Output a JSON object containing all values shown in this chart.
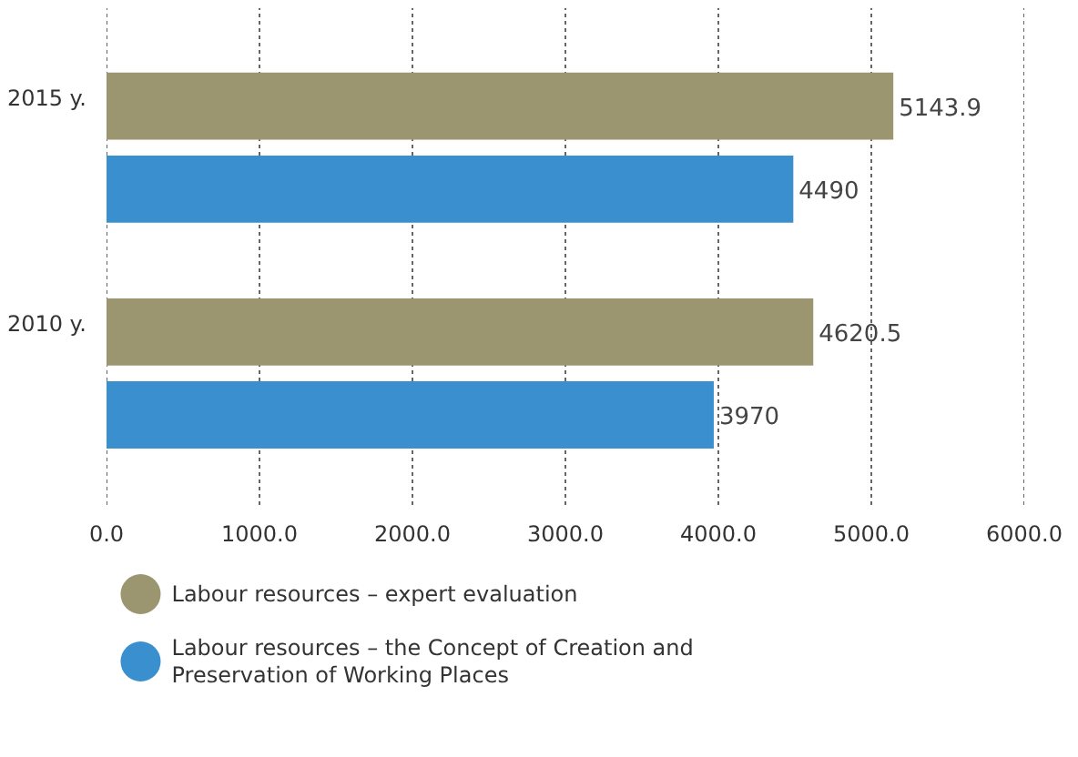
{
  "chart_data": {
    "type": "bar",
    "orientation": "horizontal",
    "categories": [
      "2015 y.",
      "2010 y."
    ],
    "series": [
      {
        "name": "Labour resources – expert evaluation",
        "color": "#9c9670",
        "values": [
          5143.9,
          4620.5
        ]
      },
      {
        "name": "Labour resources – the Concept of Creation and Preservation of Working Places",
        "color": "#3a8fcf",
        "values": [
          4490,
          3970
        ]
      }
    ],
    "xlim": [
      0,
      6000
    ],
    "xticks": [
      {
        "value": 0,
        "label": "0.0"
      },
      {
        "value": 1000,
        "label": "1000.0"
      },
      {
        "value": 2000,
        "label": "2000.0"
      },
      {
        "value": 3000,
        "label": "3000.0"
      },
      {
        "value": 4000,
        "label": "4000.0"
      },
      {
        "value": 5000,
        "label": "5000.0"
      },
      {
        "value": 6000,
        "label": "6000.0"
      }
    ],
    "grid": "x",
    "data_labels": true,
    "legend": "bottom"
  }
}
